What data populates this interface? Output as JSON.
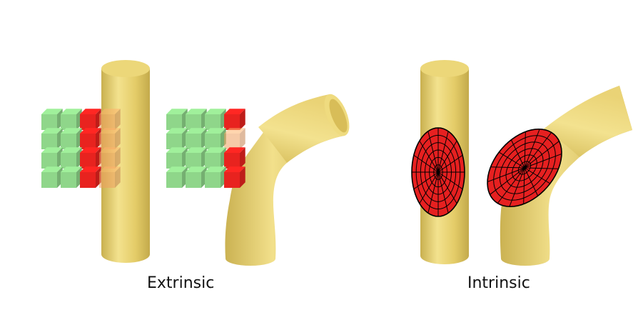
{
  "captions": {
    "extrinsic": "Extrinsic",
    "intrinsic": "Intrinsic"
  },
  "colors": {
    "tube": "#e8d16e",
    "tube_shade": "#cdb453",
    "tube_light": "#f4e391",
    "voxel_green": "#8fd68a",
    "voxel_green_top": "#b6e9ad",
    "voxel_red": "#e8231f",
    "voxel_orange": "#f0a060",
    "patch_red": "#e62020",
    "patch_line": "#000000"
  },
  "panels": [
    {
      "name": "extrinsic-straight",
      "surface": "straight-cylinder",
      "operator": "voxel-grid"
    },
    {
      "name": "extrinsic-bent",
      "surface": "bent-cylinder",
      "operator": "voxel-grid"
    },
    {
      "name": "intrinsic-straight",
      "surface": "straight-cylinder",
      "operator": "geodesic-polar-patch"
    },
    {
      "name": "intrinsic-bent",
      "surface": "bent-cylinder",
      "operator": "geodesic-polar-patch"
    }
  ]
}
